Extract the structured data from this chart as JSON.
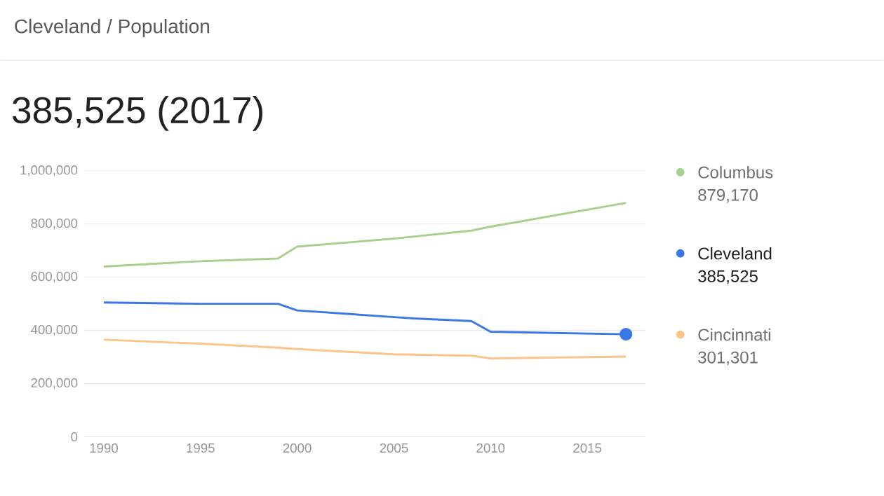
{
  "chart_data": {
    "type": "line",
    "title": "Cleveland / Population",
    "subtitle": "385,525 (2017)",
    "xlim": [
      1989,
      2018
    ],
    "xticks": [
      1990,
      1995,
      2000,
      2005,
      2010,
      2015
    ],
    "ylim": [
      0,
      1000000
    ],
    "yticks": [
      {
        "value": 0,
        "label": "0"
      },
      {
        "value": 200000,
        "label": "200,000"
      },
      {
        "value": 400000,
        "label": "400,000"
      },
      {
        "value": 600000,
        "label": "600,000"
      },
      {
        "value": 800000,
        "label": "800,000"
      },
      {
        "value": 1000000,
        "label": "1,000,000"
      }
    ],
    "grid": "y",
    "legend": "right",
    "series": [
      {
        "name": "Columbus",
        "color": "#a8d08d",
        "x": [
          1990,
          1995,
          1999,
          2000,
          2005,
          2009,
          2010,
          2017
        ],
        "values": [
          640000,
          660000,
          670000,
          715000,
          745000,
          775000,
          790000,
          879170
        ]
      },
      {
        "name": "Cleveland",
        "color": "#3b78e7",
        "x": [
          1990,
          1995,
          1999,
          2000,
          2005,
          2006,
          2009,
          2010,
          2017
        ],
        "values": [
          505000,
          500000,
          500000,
          475000,
          450000,
          445000,
          435000,
          395000,
          385525
        ]
      },
      {
        "name": "Cincinnati",
        "color": "#fbc58a",
        "x": [
          1990,
          1995,
          1999,
          2000,
          2005,
          2009,
          2010,
          2017
        ],
        "values": [
          365000,
          350000,
          335000,
          330000,
          310000,
          305000,
          295000,
          301301
        ]
      },
      {
        "type": "scatter",
        "color": "#3b78e7",
        "x": [
          2017
        ],
        "values": [
          385525
        ]
      }
    ],
    "annotations": [
      "879,170",
      "385,525",
      "301,301"
    ]
  }
}
